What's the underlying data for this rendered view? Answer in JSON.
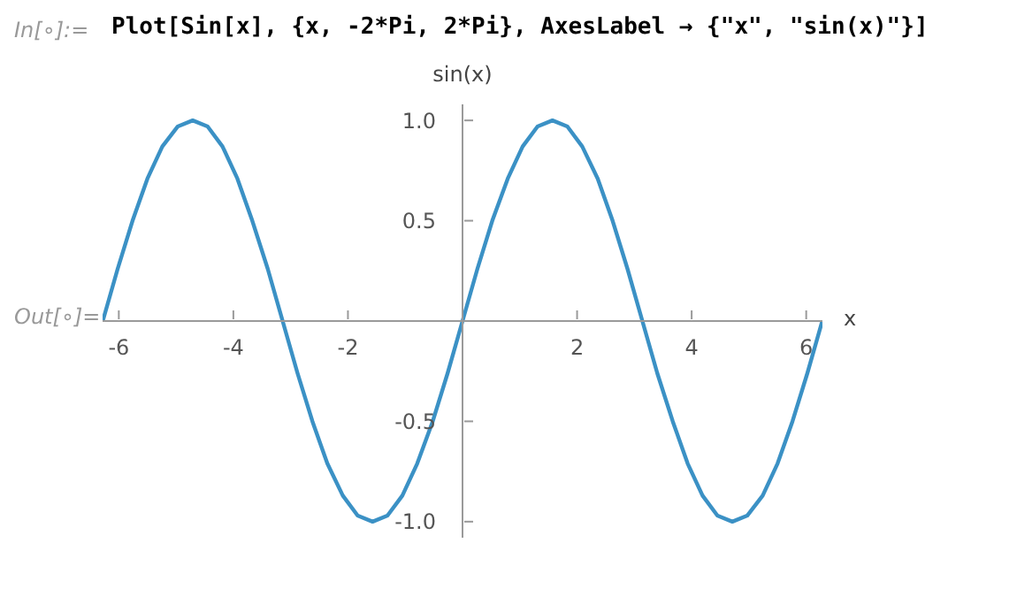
{
  "chart_data": {
    "type": "line",
    "xlabel": "x",
    "ylabel": "sin(x)",
    "annotations": [
      "In[∘]:=",
      "Plot[Sin[x], {x, -2*Pi, 2*Pi}, AxesLabel → {\"x\", \"sin(x)\"}]",
      "Out[∘]="
    ],
    "x": [
      -6.28,
      -6.02,
      -5.76,
      -5.5,
      -5.24,
      -4.97,
      -4.71,
      -4.45,
      -4.19,
      -3.93,
      -3.67,
      -3.4,
      -3.14,
      -2.88,
      -2.62,
      -2.36,
      -2.09,
      -1.83,
      -1.57,
      -1.31,
      -1.05,
      -0.79,
      -0.52,
      -0.26,
      0,
      0.26,
      0.52,
      0.79,
      1.05,
      1.31,
      1.57,
      1.83,
      2.09,
      2.36,
      2.62,
      2.88,
      3.14,
      3.4,
      3.67,
      3.93,
      4.19,
      4.45,
      4.71,
      4.97,
      5.24,
      5.5,
      5.76,
      6.02,
      6.28
    ],
    "series": [
      {
        "color": "#3b91c5",
        "values": [
          0,
          0.26,
          0.5,
          0.71,
          0.87,
          0.97,
          1,
          0.97,
          0.87,
          0.71,
          0.5,
          0.26,
          0,
          -0.26,
          -0.5,
          -0.71,
          -0.87,
          -0.97,
          -1,
          -0.97,
          -0.87,
          -0.71,
          -0.5,
          -0.26,
          0,
          0.26,
          0.5,
          0.71,
          0.87,
          0.97,
          1,
          0.97,
          0.87,
          0.71,
          0.5,
          0.26,
          0,
          -0.26,
          -0.5,
          -0.71,
          -0.87,
          -0.97,
          -1,
          -0.97,
          -0.87,
          -0.71,
          -0.5,
          -0.26,
          0
        ]
      }
    ],
    "xlim": [
      -6.2832,
      6.2832
    ],
    "ylim": [
      -1.08,
      1.08
    ],
    "xticks": [
      -6,
      -4,
      -2,
      2,
      4,
      6
    ],
    "yticks": [
      {
        "value": -1,
        "label": "-1.0"
      },
      -0.5,
      0.5,
      {
        "value": 1,
        "label": "1.0"
      }
    ],
    "grid": false,
    "legend": false,
    "marker": "none",
    "line_style": "solid"
  }
}
